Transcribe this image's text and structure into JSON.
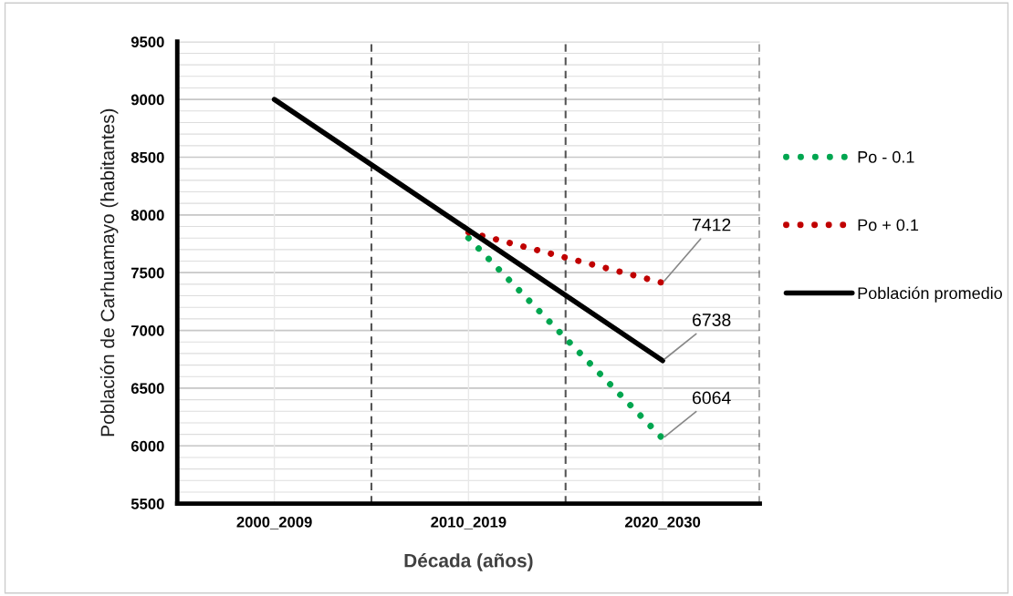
{
  "chart_data": {
    "type": "line",
    "xlabel": "Década (años)",
    "ylabel": "Población de Carhuamayo (habitantes)",
    "categories": [
      "2000_2009",
      "2010_2019",
      "2020_2030"
    ],
    "series": [
      {
        "name": "Po - 0.1",
        "color": "#00a650",
        "values": [
          null,
          7800,
          6064
        ],
        "line_style": "dotted"
      },
      {
        "name": "Po + 0.1",
        "color": "#c00000",
        "values": [
          null,
          7850,
          7412
        ],
        "line_style": "dotted"
      },
      {
        "name": "Población promedio",
        "color": "#000000",
        "values": [
          9000,
          7870,
          6738
        ],
        "line_style": "solid"
      }
    ],
    "ylim": [
      5500,
      9500
    ],
    "yticks": [
      5500,
      6000,
      6500,
      7000,
      7500,
      8000,
      8500,
      9000,
      9500
    ],
    "grid": true,
    "legend": "right",
    "marker": "none",
    "annotations": [
      {
        "text": "7412",
        "x": "2020_2030",
        "y": 7412
      },
      {
        "text": "6738",
        "x": "2020_2030",
        "y": 6738
      },
      {
        "text": "6064",
        "x": "2020_2030",
        "y": 6064
      }
    ]
  }
}
